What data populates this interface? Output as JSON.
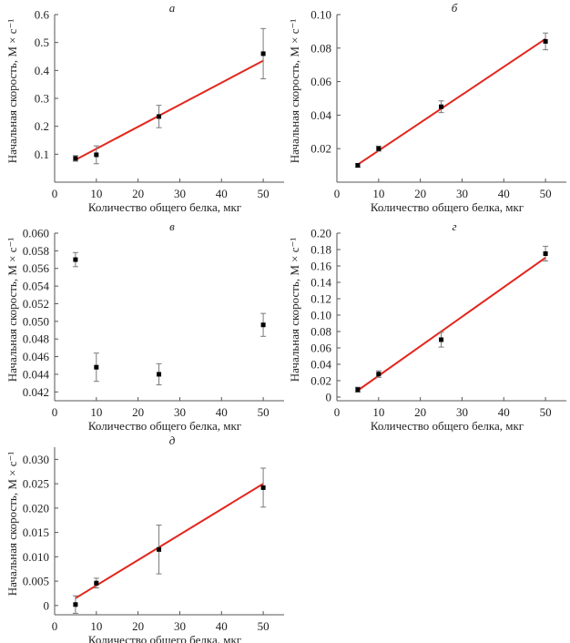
{
  "chart_data": [
    {
      "type": "scatter",
      "title": "а",
      "xlabel": "Количество общего белка, мкг",
      "ylabel": "Начальная скорость, М × с⁻¹",
      "xlim": [
        0,
        55
      ],
      "ylim": [
        0,
        0.6
      ],
      "xticks": [
        0,
        10,
        20,
        30,
        40,
        50
      ],
      "yticks": [
        0.1,
        0.2,
        0.3,
        0.4,
        0.5,
        0.6
      ],
      "ytick_labels": [
        "0.1",
        "0.2",
        "0.3",
        "0.4",
        "0.5",
        "0.6"
      ],
      "x": [
        5,
        10,
        25,
        50
      ],
      "y": [
        0.085,
        0.098,
        0.235,
        0.46
      ],
      "yerr": [
        0.01,
        0.032,
        0.04,
        0.09
      ],
      "fit": {
        "x": [
          5,
          50
        ],
        "y": [
          0.08,
          0.435
        ]
      }
    },
    {
      "type": "scatter",
      "title": "б",
      "xlabel": "Количество общего белка, мкг",
      "ylabel": "Начальная скорость, М × с⁻¹",
      "xlim": [
        0,
        55
      ],
      "ylim": [
        0,
        0.1
      ],
      "xticks": [
        0,
        10,
        20,
        30,
        40,
        50
      ],
      "yticks": [
        0.02,
        0.04,
        0.06,
        0.08,
        0.1
      ],
      "ytick_labels": [
        "0.02",
        "0.04",
        "0.06",
        "0.08",
        "0.10"
      ],
      "x": [
        5,
        10,
        25,
        50
      ],
      "y": [
        0.01,
        0.02,
        0.045,
        0.084
      ],
      "yerr": [
        0.001,
        0.0015,
        0.0035,
        0.005
      ],
      "fit": {
        "x": [
          5,
          50
        ],
        "y": [
          0.0105,
          0.0855
        ]
      }
    },
    {
      "type": "scatter",
      "title": "в",
      "xlabel": "Количество общего белка, мкг",
      "ylabel": "Начальная скорость, М × с⁻¹",
      "xlim": [
        0,
        55
      ],
      "ylim": [
        0.041,
        0.06
      ],
      "xticks": [
        0,
        10,
        20,
        30,
        40,
        50
      ],
      "yticks": [
        0.042,
        0.044,
        0.046,
        0.048,
        0.05,
        0.052,
        0.054,
        0.056,
        0.058,
        0.06
      ],
      "ytick_labels": [
        "0.042",
        "0.044",
        "0.046",
        "0.048",
        "0.050",
        "0.052",
        "0.054",
        "0.056",
        "0.058",
        "0.060"
      ],
      "x": [
        5,
        10,
        25,
        50
      ],
      "y": [
        0.057,
        0.0448,
        0.044,
        0.0496
      ],
      "yerr": [
        0.0008,
        0.0016,
        0.0012,
        0.0013
      ],
      "fit": null
    },
    {
      "type": "scatter",
      "title": "г",
      "xlabel": "Количество общего белка, мкг",
      "ylabel": "Начальная скорость, М × с⁻¹",
      "xlim": [
        0,
        55
      ],
      "ylim": [
        -0.0045,
        0.2
      ],
      "xticks": [
        0,
        10,
        20,
        30,
        40,
        50
      ],
      "yticks": [
        0,
        0.02,
        0.04,
        0.06,
        0.08,
        0.1,
        0.12,
        0.14,
        0.16,
        0.18,
        0.2
      ],
      "ytick_labels": [
        "0",
        "0.02",
        "0.04",
        "0.06",
        "0.08",
        "0.10",
        "0.12",
        "0.14",
        "0.16",
        "0.18",
        "0.20"
      ],
      "x": [
        5,
        10,
        25,
        50
      ],
      "y": [
        0.009,
        0.028,
        0.07,
        0.175
      ],
      "yerr": [
        0.003,
        0.004,
        0.009,
        0.009
      ],
      "fit": {
        "x": [
          5,
          50
        ],
        "y": [
          0.008,
          0.17
        ]
      }
    },
    {
      "type": "scatter",
      "title": "д",
      "xlabel": "Количество общего белка, мкг",
      "ylabel": "Начальная скорость, М × с⁻¹",
      "xlim": [
        0,
        55
      ],
      "ylim": [
        -0.0019,
        0.0325
      ],
      "xticks": [
        0,
        10,
        20,
        30,
        40,
        50
      ],
      "yticks": [
        0,
        0.005,
        0.01,
        0.015,
        0.02,
        0.025,
        0.03
      ],
      "ytick_labels": [
        "0",
        "0.005",
        "0.010",
        "0.015",
        "0.020",
        "0.025",
        "0.030"
      ],
      "x": [
        5,
        10,
        25,
        50
      ],
      "y": [
        0.0002,
        0.0046,
        0.0115,
        0.0242
      ],
      "yerr": [
        0.0018,
        0.001,
        0.005,
        0.004
      ],
      "fit": {
        "x": [
          5,
          50
        ],
        "y": [
          0.0015,
          0.025
        ]
      }
    }
  ],
  "colors": {
    "fit_line": "#e3261d",
    "marker": "#000000",
    "error_bar": "#7a7a7a",
    "axis": "#555555"
  }
}
